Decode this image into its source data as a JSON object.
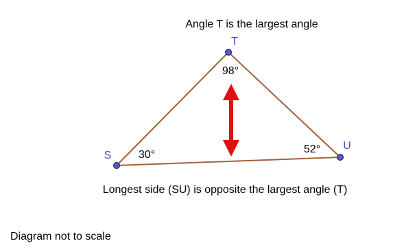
{
  "title": "Angle T is the largest angle",
  "vertices": [
    {
      "label": "S",
      "angle": "30°"
    },
    {
      "label": "T",
      "angle": "98°"
    },
    {
      "label": "U",
      "angle": "52°"
    }
  ],
  "caption": "Longest side (SU) is opposite the largest angle (T)",
  "note": "Diagram not to scale"
}
